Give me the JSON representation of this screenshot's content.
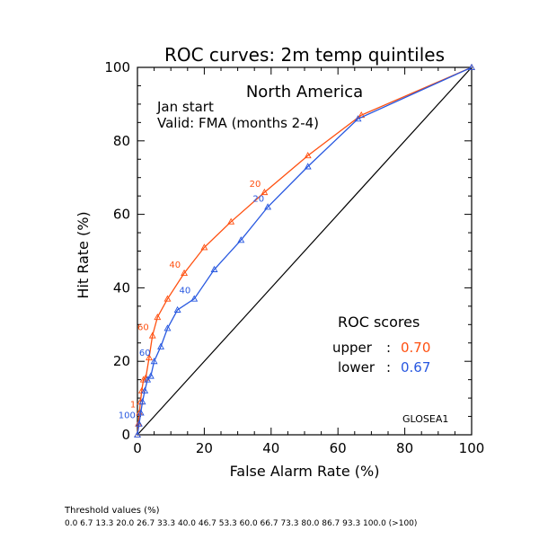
{
  "chart_data": {
    "type": "line",
    "title": "ROC curves: 2m temp quintiles",
    "subtitle": "North America",
    "annotations": [
      "Jan start",
      "Valid: FMA (months 2-4)"
    ],
    "xlabel": "False Alarm Rate (%)",
    "ylabel": "Hit Rate (%)",
    "xlim": [
      0,
      100
    ],
    "ylim": [
      0,
      100
    ],
    "xticks": [
      0,
      20,
      40,
      60,
      80,
      100
    ],
    "yticks": [
      0,
      20,
      40,
      60,
      80,
      100
    ],
    "grid": false,
    "model_label": "GLOSEA1",
    "scores_title": "ROC scores",
    "series": [
      {
        "name": "upper",
        "score_label": "upper",
        "score": "0.70",
        "color": "#ff5010",
        "x": [
          0,
          0.3,
          0.6,
          0.9,
          1.3,
          1.8,
          2.5,
          3.5,
          4.5,
          6,
          9,
          14,
          20,
          28,
          38,
          51,
          67,
          100
        ],
        "y": [
          0,
          3,
          6,
          9,
          12,
          15,
          15.5,
          21,
          27,
          32,
          37,
          44,
          51,
          58,
          66,
          76,
          87,
          100
        ],
        "point_labels": [
          {
            "text": "20",
            "x": 38,
            "y": 66
          },
          {
            "text": "40",
            "x": 14,
            "y": 44
          },
          {
            "text": "60",
            "x": 4.5,
            "y": 27
          },
          {
            "text": "1",
            "x": 0.6,
            "y": 6
          }
        ]
      },
      {
        "name": "lower",
        "score_label": "lower",
        "score": "0.67",
        "color": "#2858e0",
        "x": [
          0,
          0.5,
          1,
          1.5,
          2.2,
          3,
          4,
          5,
          7,
          9,
          12,
          17,
          23,
          31,
          39,
          51,
          66,
          100
        ],
        "y": [
          0,
          3,
          6,
          9,
          12,
          15,
          16,
          20,
          24,
          29,
          34,
          37,
          45,
          53,
          62,
          73,
          86,
          100
        ],
        "point_labels": [
          {
            "text": "20",
            "x": 39,
            "y": 62
          },
          {
            "text": "40",
            "x": 17,
            "y": 37
          },
          {
            "text": "60",
            "x": 5,
            "y": 20
          },
          {
            "text": "100",
            "x": 0.5,
            "y": 3
          }
        ]
      }
    ],
    "diagonal": true
  },
  "footer": {
    "threshold_title": "Threshold values (%)",
    "threshold_values": "0.0 6.7 13.3 20.0 26.7 33.3 40.0 46.7 53.3 60.0 66.7 73.3 80.0 86.7 93.3 100.0 (>100)"
  }
}
